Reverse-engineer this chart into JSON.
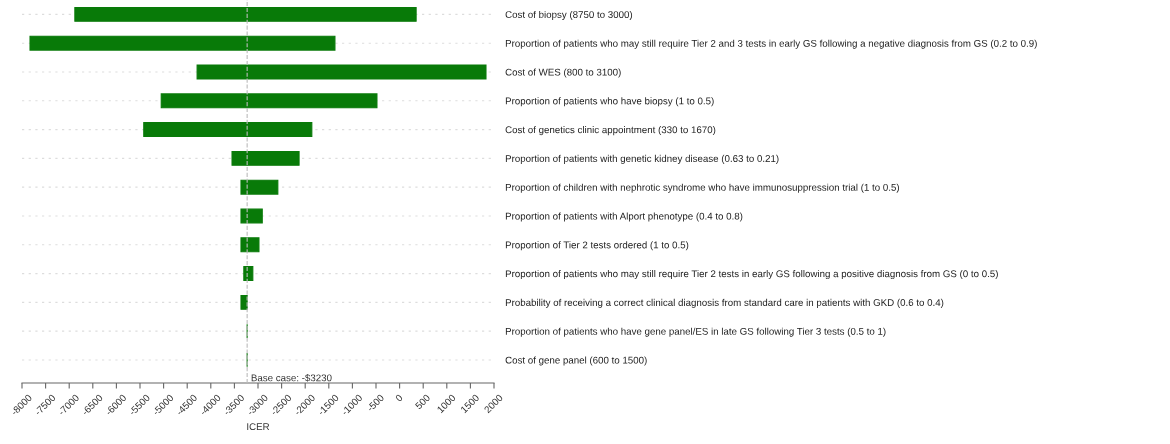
{
  "chart_data": {
    "type": "bar",
    "orientation": "horizontal",
    "xlabel": "ICER",
    "categories": [
      "Cost of biopsy (8750 to 3000)",
      "Proportion of patients who may still require Tier 2 and 3 tests in early GS following a negative diagnosis from GS (0.2 to 0.9)",
      "Cost of WES (800 to 3100)",
      "Proportion of patients who have biopsy (1 to 0.5)",
      "Cost of genetics clinic appointment (330 to 1670)",
      "Proportion of patients with genetic kidney disease (0.63 to 0.21)",
      "Proportion of children with nephrotic syndrome who have immunosuppression trial (1 to 0.5)",
      "Proportion of patients with Alport phenotype (0.4 to 0.8)",
      "Proportion of Tier 2 tests ordered (1 to 0.5)",
      "Proportion of patients who may still require Tier 2 tests in early GS following a positive diagnosis from GS (0 to 0.5)",
      "Probability of receiving a correct clinical diagnosis from standard care in patients with GKD (0.6 to 0.4)",
      "Proportion of patients who have gene panel/ES in late GS following Tier 3 tests (0.5 to 1)",
      "Cost of gene panel (600 to 1500)"
    ],
    "base": [
      -6880,
      -7830,
      -4290,
      -5050,
      -5420,
      -3550,
      -3360,
      -3360,
      -3360,
      -3300,
      -3360,
      -3230,
      -3230
    ],
    "values": [
      7230,
      6460,
      6120,
      4570,
      3560,
      1420,
      780,
      450,
      380,
      190,
      130,
      0,
      0
    ],
    "color": "#087a08",
    "xlim": [
      -8000,
      2000
    ],
    "xticks": [
      -8000,
      -7500,
      -7000,
      -6500,
      -6000,
      -5500,
      -5000,
      -4500,
      -4000,
      -3500,
      -3000,
      -2500,
      -2000,
      -1500,
      -1000,
      -500,
      0,
      500,
      1000,
      1500,
      2000
    ],
    "grid": "y",
    "ref_lines": [
      {
        "axis": "x",
        "value": -3230,
        "label": "Base case: -$3230",
        "color": "#bbbbbb",
        "line_style": "dashed"
      }
    ]
  }
}
